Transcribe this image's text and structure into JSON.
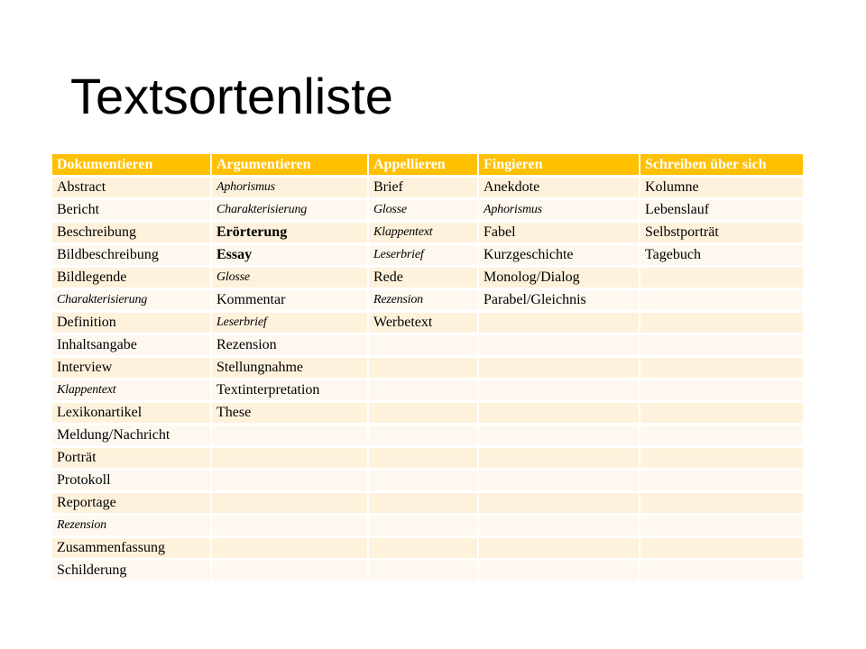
{
  "slide": {
    "title": "Textsortenliste"
  },
  "table": {
    "headers": [
      "Dokumentieren",
      "Argumentieren",
      "Appellieren",
      "Fingieren",
      "Schreiben über sich"
    ],
    "header_color": "#ffc000",
    "row_colors": [
      "#fff2dc",
      "#fff8f0"
    ],
    "rows": [
      [
        {
          "text": "Abstract"
        },
        {
          "text": "Aphorismus",
          "style": "italic"
        },
        {
          "text": "Brief"
        },
        {
          "text": "Anekdote"
        },
        {
          "text": "Kolumne"
        }
      ],
      [
        {
          "text": "Bericht"
        },
        {
          "text": "Charakterisierung",
          "style": "italic"
        },
        {
          "text": "Glosse",
          "style": "italic"
        },
        {
          "text": "Aphorismus",
          "style": "italic"
        },
        {
          "text": "Lebenslauf"
        }
      ],
      [
        {
          "text": "Beschreibung"
        },
        {
          "text": "Erörterung",
          "style": "bold"
        },
        {
          "text": "Klappentext",
          "style": "italic"
        },
        {
          "text": "Fabel"
        },
        {
          "text": "Selbstporträt"
        }
      ],
      [
        {
          "text": "Bildbeschreibung"
        },
        {
          "text": "Essay",
          "style": "bold"
        },
        {
          "text": "Leserbrief",
          "style": "italic"
        },
        {
          "text": "Kurzgeschichte"
        },
        {
          "text": "Tagebuch"
        }
      ],
      [
        {
          "text": "Bildlegende"
        },
        {
          "text": "Glosse",
          "style": "italic"
        },
        {
          "text": "Rede"
        },
        {
          "text": "Monolog/Dialog"
        },
        {
          "text": ""
        }
      ],
      [
        {
          "text": "Charakterisierung",
          "style": "italic"
        },
        {
          "text": "Kommentar"
        },
        {
          "text": "Rezension",
          "style": "italic"
        },
        {
          "text": "Parabel/Gleichnis"
        },
        {
          "text": ""
        }
      ],
      [
        {
          "text": "Definition"
        },
        {
          "text": "Leserbrief",
          "style": "italic"
        },
        {
          "text": "Werbetext"
        },
        {
          "text": ""
        },
        {
          "text": ""
        }
      ],
      [
        {
          "text": "Inhaltsangabe"
        },
        {
          "text": "Rezension"
        },
        {
          "text": ""
        },
        {
          "text": ""
        },
        {
          "text": ""
        }
      ],
      [
        {
          "text": "Interview"
        },
        {
          "text": "Stellungnahme"
        },
        {
          "text": ""
        },
        {
          "text": ""
        },
        {
          "text": ""
        }
      ],
      [
        {
          "text": "Klappentext",
          "style": "italic"
        },
        {
          "text": "Textinterpretation"
        },
        {
          "text": ""
        },
        {
          "text": ""
        },
        {
          "text": ""
        }
      ],
      [
        {
          "text": "Lexikonartikel"
        },
        {
          "text": "These"
        },
        {
          "text": ""
        },
        {
          "text": ""
        },
        {
          "text": ""
        }
      ],
      [
        {
          "text": "Meldung/Nachricht"
        },
        {
          "text": ""
        },
        {
          "text": ""
        },
        {
          "text": ""
        },
        {
          "text": ""
        }
      ],
      [
        {
          "text": "Porträt"
        },
        {
          "text": ""
        },
        {
          "text": ""
        },
        {
          "text": ""
        },
        {
          "text": ""
        }
      ],
      [
        {
          "text": "Protokoll"
        },
        {
          "text": ""
        },
        {
          "text": ""
        },
        {
          "text": ""
        },
        {
          "text": ""
        }
      ],
      [
        {
          "text": "Reportage"
        },
        {
          "text": ""
        },
        {
          "text": ""
        },
        {
          "text": ""
        },
        {
          "text": ""
        }
      ],
      [
        {
          "text": "Rezension",
          "style": "italic"
        },
        {
          "text": ""
        },
        {
          "text": ""
        },
        {
          "text": ""
        },
        {
          "text": ""
        }
      ],
      [
        {
          "text": "Zusammenfassung"
        },
        {
          "text": ""
        },
        {
          "text": ""
        },
        {
          "text": ""
        },
        {
          "text": ""
        }
      ],
      [
        {
          "text": "Schilderung"
        },
        {
          "text": ""
        },
        {
          "text": ""
        },
        {
          "text": ""
        },
        {
          "text": ""
        }
      ]
    ]
  }
}
